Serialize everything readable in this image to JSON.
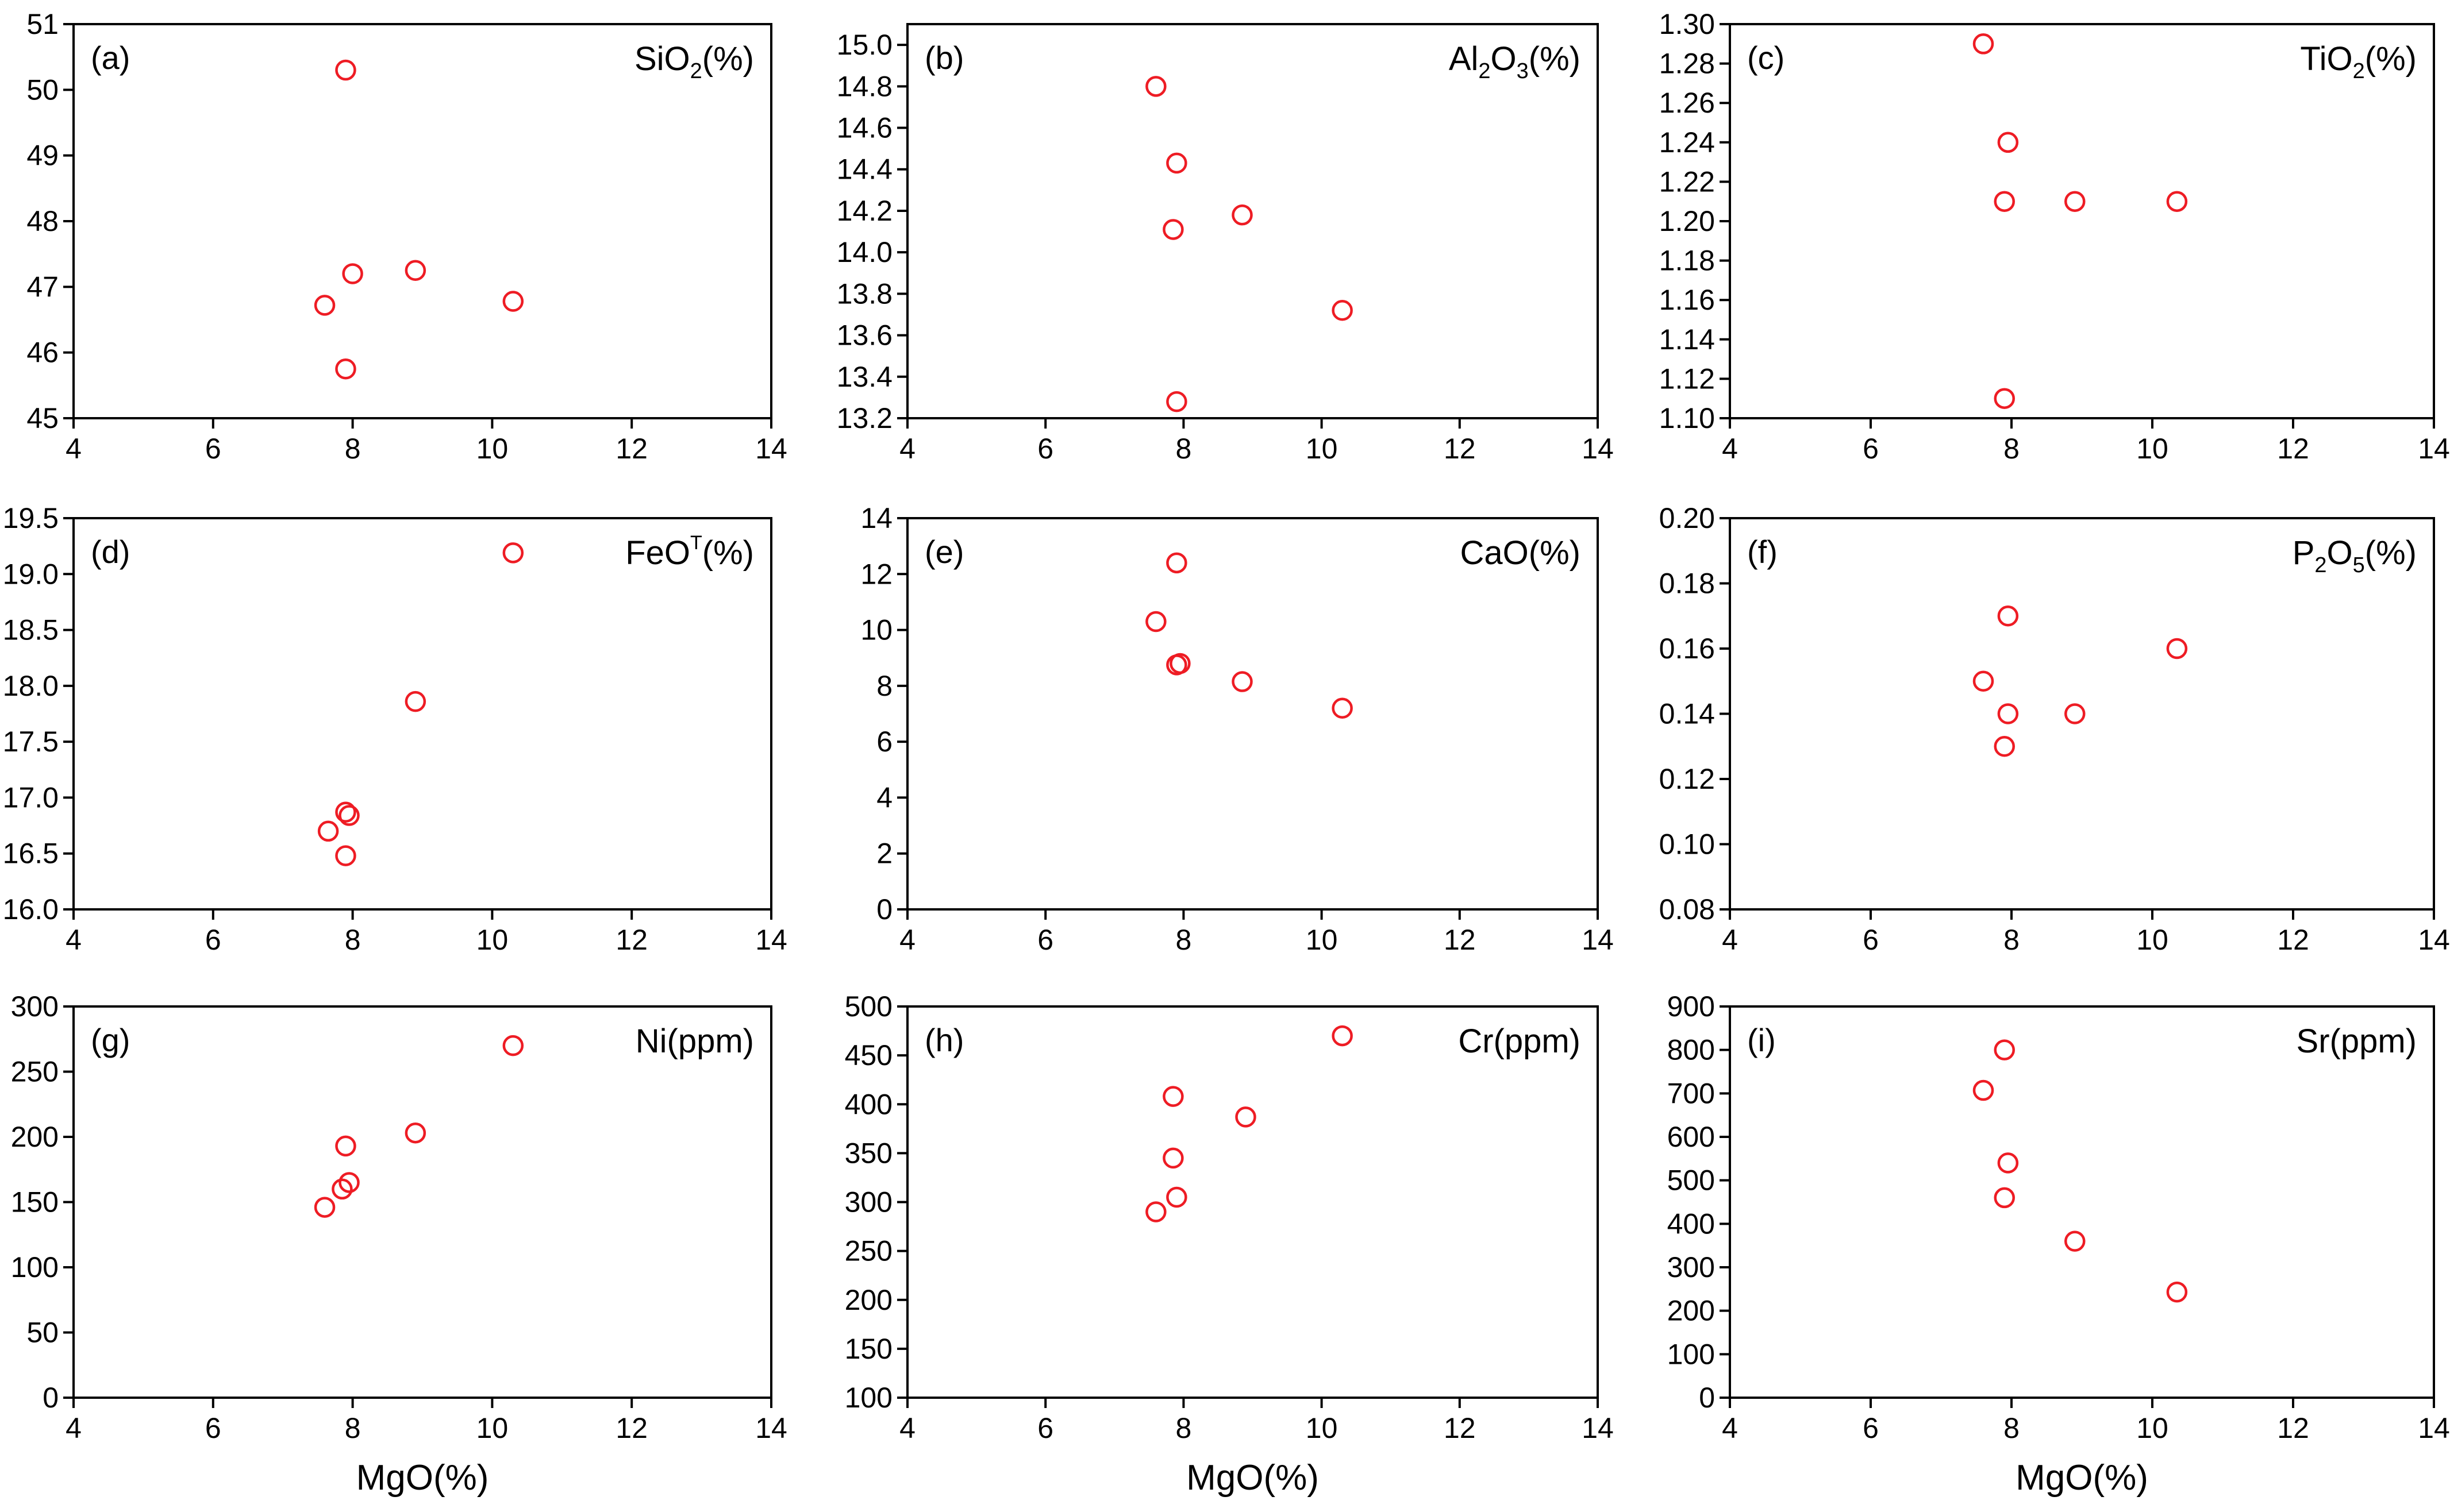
{
  "figure": {
    "x_axis_label": "MgO(%)"
  },
  "style": {
    "marker_color": "#ee1c24",
    "axis_color": "#000000"
  },
  "chart_data": [
    {
      "type": "scatter",
      "label": "(a)",
      "var_label": {
        "main": "SiO",
        "sub": "2",
        "sup": "",
        "unit": "(%)"
      },
      "x": [
        7.6,
        7.9,
        8.0,
        7.9,
        8.9,
        10.3
      ],
      "y": [
        46.72,
        50.3,
        47.2,
        45.75,
        47.25,
        46.78
      ],
      "xlim": [
        4,
        14
      ],
      "ylim": [
        45,
        51
      ],
      "xticks": [
        "4",
        "6",
        "8",
        "10",
        "12",
        "14"
      ],
      "yticks": [
        "45",
        "46",
        "47",
        "48",
        "49",
        "50",
        "51"
      ],
      "xlabel": ""
    },
    {
      "type": "scatter",
      "label": "(b)",
      "var_label": {
        "main": "Al",
        "sub": "2",
        "main2": "O",
        "sub2": "3",
        "unit": "(%)"
      },
      "x": [
        7.6,
        7.9,
        7.9,
        7.85,
        8.85,
        10.3
      ],
      "y": [
        14.8,
        14.43,
        13.28,
        14.11,
        14.18,
        13.72
      ],
      "xlim": [
        4,
        14
      ],
      "ylim": [
        13.2,
        15.1
      ],
      "xticks": [
        "4",
        "6",
        "8",
        "10",
        "12",
        "14"
      ],
      "yticks": [
        "13.2",
        "13.4",
        "13.6",
        "13.8",
        "14.0",
        "14.2",
        "14.4",
        "14.6",
        "14.8",
        "15.0"
      ],
      "xlabel": ""
    },
    {
      "type": "scatter",
      "label": "(c)",
      "var_label": {
        "main": "TiO",
        "sub": "2",
        "sup": "",
        "unit": "(%)"
      },
      "x": [
        7.6,
        7.95,
        7.9,
        7.9,
        8.9,
        10.35
      ],
      "y": [
        1.29,
        1.24,
        1.21,
        1.11,
        1.21,
        1.21
      ],
      "xlim": [
        4,
        14
      ],
      "ylim": [
        1.1,
        1.3
      ],
      "xticks": [
        "4",
        "6",
        "8",
        "10",
        "12",
        "14"
      ],
      "yticks": [
        "1.10",
        "1.12",
        "1.14",
        "1.16",
        "1.18",
        "1.20",
        "1.22",
        "1.24",
        "1.26",
        "1.28",
        "1.30"
      ],
      "xlabel": ""
    },
    {
      "type": "scatter",
      "label": "(d)",
      "var_label": {
        "main": "FeO",
        "sub": "",
        "sup": "T",
        "unit": "(%)"
      },
      "x": [
        7.65,
        7.9,
        7.95,
        7.9,
        8.9,
        10.3
      ],
      "y": [
        16.7,
        16.87,
        16.84,
        16.48,
        17.86,
        19.19
      ],
      "xlim": [
        4,
        14
      ],
      "ylim": [
        16.0,
        19.5
      ],
      "xticks": [
        "4",
        "6",
        "8",
        "10",
        "12",
        "14"
      ],
      "yticks": [
        "16.0",
        "16.5",
        "17.0",
        "17.5",
        "18.0",
        "18.5",
        "19.0",
        "19.5"
      ],
      "xlabel": ""
    },
    {
      "type": "scatter",
      "label": "(e)",
      "var_label": {
        "main": "CaO",
        "sub": "",
        "sup": "",
        "unit": "(%)"
      },
      "x": [
        7.6,
        7.9,
        7.9,
        7.95,
        8.85,
        10.3
      ],
      "y": [
        10.3,
        12.4,
        8.75,
        8.8,
        8.15,
        7.2
      ],
      "xlim": [
        4,
        14
      ],
      "ylim": [
        0,
        14
      ],
      "xticks": [
        "4",
        "6",
        "8",
        "10",
        "12",
        "14"
      ],
      "yticks": [
        "0",
        "2",
        "4",
        "6",
        "8",
        "10",
        "12",
        "14"
      ],
      "xlabel": ""
    },
    {
      "type": "scatter",
      "label": "(f)",
      "var_label": {
        "main": "P",
        "sub": "2",
        "main2": "O",
        "sub2": "5",
        "unit": "(%)"
      },
      "x": [
        7.6,
        7.95,
        7.95,
        7.9,
        8.9,
        10.35
      ],
      "y": [
        0.15,
        0.17,
        0.14,
        0.13,
        0.14,
        0.16
      ],
      "xlim": [
        4,
        14
      ],
      "ylim": [
        0.08,
        0.2
      ],
      "xticks": [
        "4",
        "6",
        "8",
        "10",
        "12",
        "14"
      ],
      "yticks": [
        "0.08",
        "0.10",
        "0.12",
        "0.14",
        "0.16",
        "0.18",
        "0.20"
      ],
      "xlabel": ""
    },
    {
      "type": "scatter",
      "label": "(g)",
      "var_label": {
        "main": "Ni(ppm)",
        "sub": "",
        "sup": "",
        "unit": ""
      },
      "x": [
        7.6,
        7.9,
        7.85,
        7.95,
        8.9,
        10.3
      ],
      "y": [
        146,
        193,
        160,
        165,
        203,
        270
      ],
      "xlim": [
        4,
        14
      ],
      "ylim": [
        0,
        300
      ],
      "xticks": [
        "4",
        "6",
        "8",
        "10",
        "12",
        "14"
      ],
      "yticks": [
        "0",
        "50",
        "100",
        "150",
        "200",
        "250",
        "300"
      ],
      "xlabel": "MgO(%)"
    },
    {
      "type": "scatter",
      "label": "(h)",
      "var_label": {
        "main": "Cr(ppm)",
        "sub": "",
        "sup": "",
        "unit": ""
      },
      "x": [
        7.6,
        7.85,
        7.85,
        7.9,
        8.9,
        10.3
      ],
      "y": [
        290,
        408,
        345,
        305,
        387,
        470
      ],
      "xlim": [
        4,
        14
      ],
      "ylim": [
        100,
        500
      ],
      "xticks": [
        "4",
        "6",
        "8",
        "10",
        "12",
        "14"
      ],
      "yticks": [
        "100",
        "150",
        "200",
        "250",
        "300",
        "350",
        "400",
        "450",
        "500"
      ],
      "xlabel": "MgO(%)"
    },
    {
      "type": "scatter",
      "label": "(i)",
      "var_label": {
        "main": "Sr(ppm)",
        "sub": "",
        "sup": "",
        "unit": ""
      },
      "x": [
        7.6,
        7.9,
        7.95,
        7.9,
        8.9,
        10.35
      ],
      "y": [
        707,
        800,
        540,
        460,
        360,
        243
      ],
      "xlim": [
        4,
        14
      ],
      "ylim": [
        0,
        900
      ],
      "xticks": [
        "4",
        "6",
        "8",
        "10",
        "12",
        "14"
      ],
      "yticks": [
        "0",
        "100",
        "200",
        "300",
        "400",
        "500",
        "600",
        "700",
        "800",
        "900"
      ],
      "xlabel": "MgO(%)"
    }
  ]
}
